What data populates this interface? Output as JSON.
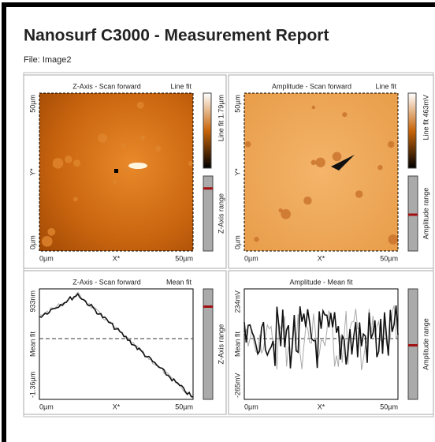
{
  "header": {
    "title": "Nanosurf C3000 - Measurement Report",
    "file": "File: Image2"
  },
  "panels": [
    {
      "title": "Z-Axis - Scan forward",
      "fit": "Line fit",
      "y_axis": {
        "top": "50µm",
        "middle": "Y*",
        "bottom": "0µm"
      },
      "x_axis": {
        "left": "0µm",
        "middle": "X*",
        "right": "50µm"
      },
      "colorbar": "Line fit 1.79µm",
      "range": "Z-Axis range"
    },
    {
      "title": "Amplitude - Scan forward",
      "fit": "Line fit",
      "y_axis": {
        "top": "50µm",
        "middle": "Y*",
        "bottom": "0µm"
      },
      "x_axis": {
        "left": "0µm",
        "middle": "X*",
        "right": "50µm"
      },
      "colorbar": "Line fit 463mV",
      "range": "Amplitude range"
    },
    {
      "title": "Z-Axis - Scan forward",
      "fit": "Mean fit",
      "y_axis": {
        "top": "933nm",
        "middle": "Mean fit",
        "bottom": "-1.36µm"
      },
      "x_axis": {
        "left": "0µm",
        "middle": "X*",
        "right": "50µm"
      },
      "range": "Z-Axis range"
    },
    {
      "title": "Amplitude - Mean fit",
      "y_axis": {
        "top": "234mV",
        "middle": "Mean fit",
        "bottom": "-265mV"
      },
      "x_axis": {
        "left": "0µm",
        "middle": "X*",
        "right": "50µm"
      },
      "range": "Amplitude range"
    }
  ]
}
